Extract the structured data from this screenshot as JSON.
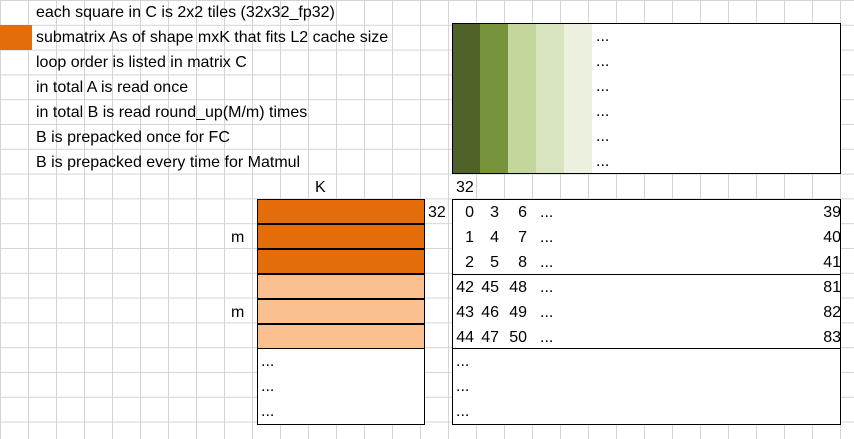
{
  "notes": [
    "each square in C is 2x2 tiles (32x32_fp32)",
    "submatrix As of shape mxK that fits L2 cache size",
    "loop order is listed in matrix C",
    "in total A is read once",
    "in total B is read round_up(M/m) times",
    "B is prepacked once for FC",
    "B is prepacked every time for Matmul"
  ],
  "colors": {
    "orange_dark": "#e46c0a",
    "orange_light": "#fac090",
    "greens": [
      "#4f6228",
      "#77933c",
      "#c3d69b",
      "#d7e4bd",
      "#ebf1de"
    ]
  },
  "labels": {
    "K": "K",
    "m1": "m",
    "m2": "m",
    "top32": "32",
    "left32": "32",
    "ellipsis": "..."
  },
  "c_matrix": {
    "rows": [
      {
        "a": "0",
        "b": "3",
        "c": "6",
        "end": "39"
      },
      {
        "a": "1",
        "b": "4",
        "c": "7",
        "end": "40"
      },
      {
        "a": "2",
        "b": "5",
        "c": "8",
        "end": "41"
      },
      {
        "a": "42",
        "b": "45",
        "c": "48",
        "end": "81"
      },
      {
        "a": "43",
        "b": "46",
        "c": "49",
        "end": "82"
      },
      {
        "a": "44",
        "b": "47",
        "c": "50",
        "end": "83"
      }
    ]
  }
}
